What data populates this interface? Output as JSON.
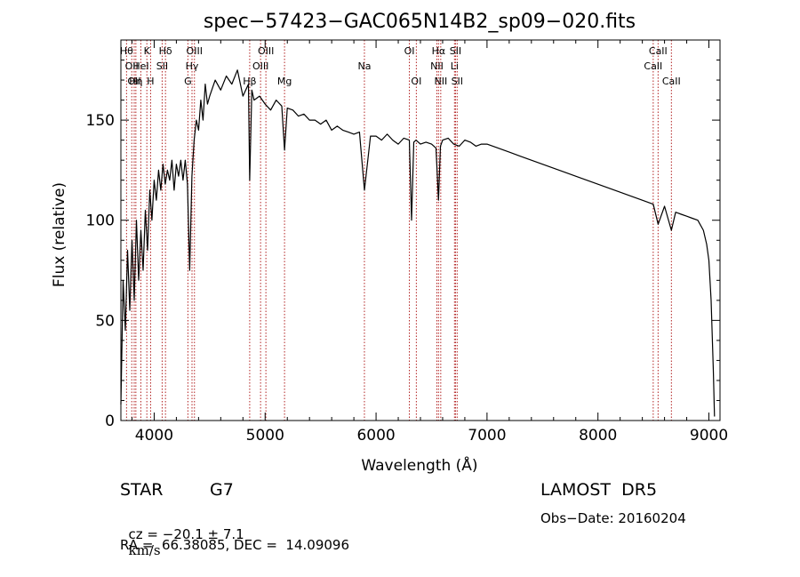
{
  "chart_data": {
    "type": "line",
    "title": "spec−57423−GAC065N14B2_sp09−020.fits",
    "xlabel": "Wavelength (Å)",
    "ylabel": "Flux (relative)",
    "xlim": [
      3700,
      9100
    ],
    "ylim": [
      0,
      190
    ],
    "x_ticks": [
      4000,
      5000,
      6000,
      7000,
      8000,
      9000
    ],
    "y_ticks": [
      0,
      50,
      100,
      150
    ],
    "x_tick_labels": [
      "4000",
      "5000",
      "6000",
      "7000",
      "8000",
      "9000"
    ],
    "y_tick_labels": [
      "0",
      "50",
      "100",
      "150"
    ],
    "grid": false,
    "legend": "none",
    "line_color": "#000000",
    "marker_color": "#b22222",
    "series": [
      {
        "x": [
          3700,
          3720,
          3740,
          3760,
          3780,
          3800,
          3820,
          3840,
          3860,
          3880,
          3900,
          3920,
          3940,
          3960,
          3980,
          4000,
          4020,
          4040,
          4060,
          4080,
          4100,
          4120,
          4140,
          4160,
          4180,
          4200,
          4220,
          4240,
          4260,
          4280,
          4300,
          4320,
          4340,
          4360,
          4380,
          4400,
          4420,
          4440,
          4460,
          4480,
          4500,
          4550,
          4600,
          4650,
          4700,
          4750,
          4800,
          4850,
          4861,
          4880,
          4900,
          4950,
          5000,
          5050,
          5100,
          5150,
          5175,
          5200,
          5250,
          5300,
          5350,
          5400,
          5450,
          5500,
          5550,
          5600,
          5650,
          5700,
          5750,
          5800,
          5850,
          5895,
          5950,
          6000,
          6050,
          6100,
          6150,
          6200,
          6250,
          6300,
          6320,
          6340,
          6360,
          6400,
          6450,
          6500,
          6540,
          6563,
          6580,
          6600,
          6650,
          6700,
          6750,
          6800,
          6850,
          6900,
          6950,
          7000,
          7100,
          7200,
          7300,
          7400,
          7500,
          7600,
          7700,
          7800,
          7900,
          8000,
          8100,
          8200,
          8300,
          8400,
          8498,
          8542,
          8600,
          8662,
          8700,
          8750,
          8800,
          8850,
          8900,
          8950,
          8980,
          9000,
          9020,
          9040,
          9050
        ],
        "y": [
          8,
          70,
          45,
          85,
          55,
          90,
          60,
          100,
          70,
          95,
          75,
          105,
          85,
          115,
          100,
          120,
          110,
          125,
          115,
          128,
          118,
          125,
          120,
          130,
          115,
          128,
          122,
          130,
          120,
          130,
          118,
          75,
          122,
          140,
          150,
          145,
          160,
          150,
          168,
          158,
          162,
          170,
          165,
          172,
          168,
          175,
          162,
          168,
          120,
          165,
          160,
          162,
          158,
          155,
          160,
          157,
          135,
          156,
          155,
          152,
          153,
          150,
          150,
          148,
          150,
          145,
          147,
          145,
          144,
          143,
          144,
          115,
          142,
          142,
          140,
          143,
          140,
          138,
          141,
          140,
          100,
          139,
          140,
          138,
          139,
          138,
          136,
          110,
          137,
          140,
          141,
          138,
          137,
          140,
          139,
          137,
          138,
          138,
          136,
          134,
          132,
          130,
          128,
          126,
          124,
          122,
          120,
          118,
          116,
          114,
          112,
          110,
          108,
          98,
          107,
          95,
          104,
          103,
          102,
          101,
          100,
          95,
          88,
          80,
          60,
          25,
          2
        ]
      }
    ],
    "lines": [
      {
        "x": 3751,
        "labels": [
          "Hθ"
        ],
        "tier": 0
      },
      {
        "x": 3798,
        "labels": [
          "OII"
        ],
        "tier": 1
      },
      {
        "x": 3820,
        "labels": [
          "OII"
        ],
        "tier": 2
      },
      {
        "x": 3835,
        "labels": [
          "Hη"
        ],
        "tier": 2
      },
      {
        "x": 3880,
        "labels": [
          "HeI"
        ],
        "tier": 1
      },
      {
        "x": 3934,
        "labels": [
          "K"
        ],
        "tier": 0
      },
      {
        "x": 3968,
        "labels": [
          "H"
        ],
        "tier": 2
      },
      {
        "x": 4072,
        "labels": [
          "SII"
        ],
        "tier": 1
      },
      {
        "x": 4102,
        "labels": [
          "Hδ"
        ],
        "tier": 0
      },
      {
        "x": 4304,
        "labels": [
          "G"
        ],
        "tier": 2
      },
      {
        "x": 4341,
        "labels": [
          "Hγ"
        ],
        "tier": 1
      },
      {
        "x": 4363,
        "labels": [
          "OIII"
        ],
        "tier": 0
      },
      {
        "x": 4861,
        "labels": [
          "Hβ"
        ],
        "tier": 2
      },
      {
        "x": 4959,
        "labels": [
          "OIII"
        ],
        "tier": 1
      },
      {
        "x": 5007,
        "labels": [
          "OIII"
        ],
        "tier": 0
      },
      {
        "x": 5175,
        "labels": [
          "Mg"
        ],
        "tier": 2
      },
      {
        "x": 5895,
        "labels": [
          "Na"
        ],
        "tier": 1
      },
      {
        "x": 6300,
        "labels": [
          "OI"
        ],
        "tier": 0
      },
      {
        "x": 6363,
        "labels": [
          "OI"
        ],
        "tier": 2
      },
      {
        "x": 6548,
        "labels": [
          "NII"
        ],
        "tier": 1
      },
      {
        "x": 6563,
        "labels": [
          "Hα"
        ],
        "tier": 0
      },
      {
        "x": 6583,
        "labels": [
          "NII"
        ],
        "tier": 2
      },
      {
        "x": 6707,
        "labels": [
          "Li"
        ],
        "tier": 1
      },
      {
        "x": 6716,
        "labels": [
          "SII"
        ],
        "tier": 0
      },
      {
        "x": 6731,
        "labels": [
          "SII"
        ],
        "tier": 2
      },
      {
        "x": 8498,
        "labels": [
          "CaII"
        ],
        "tier": 1
      },
      {
        "x": 8542,
        "labels": [
          "CaII"
        ],
        "tier": 0
      },
      {
        "x": 8662,
        "labels": [
          "CaII"
        ],
        "tier": 2
      }
    ]
  },
  "info": {
    "class": "STAR",
    "subclass": "G7",
    "survey": "LAMOST  DR5",
    "cz_prefix": "cz = −20.1 ± 7.1",
    "cz_unit": "km/s",
    "obs_date": "Obs−Date: 20160204",
    "coords": "RA =  66.38085, DEC =  14.09096"
  }
}
